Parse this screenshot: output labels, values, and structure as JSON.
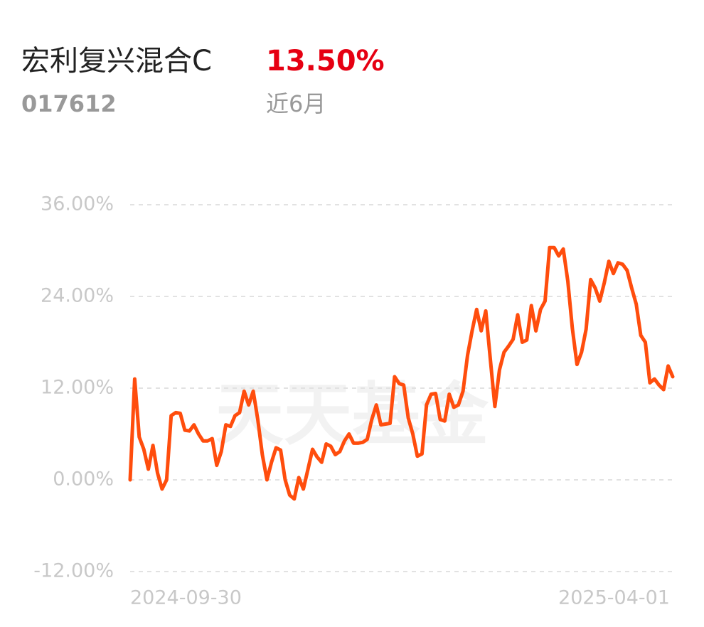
{
  "header": {
    "fund_name": "宏利复兴混合C",
    "return": "13.50%",
    "code": "017612",
    "period": "近6月"
  },
  "chart_data": {
    "type": "line",
    "watermark": "天天基金",
    "categories": [
      "2024-09-30",
      null,
      null,
      null,
      null,
      null,
      null,
      null,
      null,
      null,
      null,
      null,
      null,
      null,
      null,
      null,
      null,
      null,
      null,
      null,
      null,
      null,
      null,
      null,
      null,
      null,
      null,
      null,
      null,
      null,
      null,
      null,
      null,
      null,
      null,
      null,
      null,
      null,
      null,
      null,
      null,
      null,
      null,
      null,
      null,
      null,
      null,
      null,
      null,
      null,
      null,
      null,
      null,
      null,
      null,
      null,
      null,
      null,
      null,
      null,
      null,
      null,
      null,
      null,
      null,
      null,
      null,
      null,
      null,
      null,
      null,
      null,
      null,
      null,
      null,
      null,
      null,
      null,
      null,
      null,
      null,
      null,
      null,
      null,
      null,
      null,
      null,
      null,
      null,
      null,
      null,
      null,
      null,
      null,
      null,
      null,
      null,
      null,
      null,
      null,
      null,
      null,
      null,
      null,
      null,
      null,
      null,
      null,
      null,
      null,
      null,
      null,
      null,
      null,
      null,
      null,
      null,
      null,
      null,
      "2025-04-01"
    ],
    "values": [
      0,
      13.2,
      5.6,
      4.0,
      1.4,
      4.5,
      0.9,
      -1.2,
      0,
      8.4,
      8.8,
      8.7,
      6.5,
      6.4,
      7.2,
      6.0,
      5.1,
      5.1,
      5.4,
      1.9,
      3.7,
      7.2,
      7.0,
      8.4,
      8.8,
      11.6,
      9.8,
      11.6,
      7.9,
      3.3,
      0,
      2.3,
      4.2,
      3.9,
      0,
      -2.0,
      -2.5,
      0.3,
      -1.2,
      1.4,
      4.0,
      3.0,
      2.3,
      4.7,
      4.4,
      3.3,
      3.7,
      5.1,
      6.0,
      4.8,
      4.8,
      4.9,
      5.3,
      7.9,
      9.8,
      7.2,
      7.3,
      7.4,
      13.5,
      12.6,
      12.4,
      8.1,
      6.0,
      3.1,
      3.4,
      9.8,
      11.2,
      11.3,
      7.9,
      7.7,
      11.2,
      9.5,
      9.8,
      11.6,
      16.3,
      19.5,
      22.3,
      19.5,
      22.1,
      15.8,
      9.6,
      14.4,
      16.7,
      17.5,
      18.4,
      21.6,
      18.0,
      18.3,
      22.8,
      19.5,
      22.3,
      23.4,
      30.4,
      30.4,
      29.3,
      30.2,
      26.0,
      19.8,
      15.1,
      16.7,
      19.7,
      26.2,
      25.1,
      23.4,
      25.8,
      28.6,
      27.0,
      28.4,
      28.2,
      27.4,
      25.1,
      23.0,
      18.9,
      18.0,
      12.7,
      13.2,
      12.4,
      11.8,
      14.9,
      13.5
    ],
    "color": "#ff4d0d",
    "ylim": [
      -12,
      36
    ],
    "yticks": [
      {
        "value": -12,
        "label": "-12.00%"
      },
      {
        "value": 0,
        "label": "0.00%"
      },
      {
        "value": 12,
        "label": "12.00%"
      },
      {
        "value": 24,
        "label": "24.00%"
      },
      {
        "value": 36,
        "label": "36.00%"
      }
    ],
    "grid": true
  }
}
